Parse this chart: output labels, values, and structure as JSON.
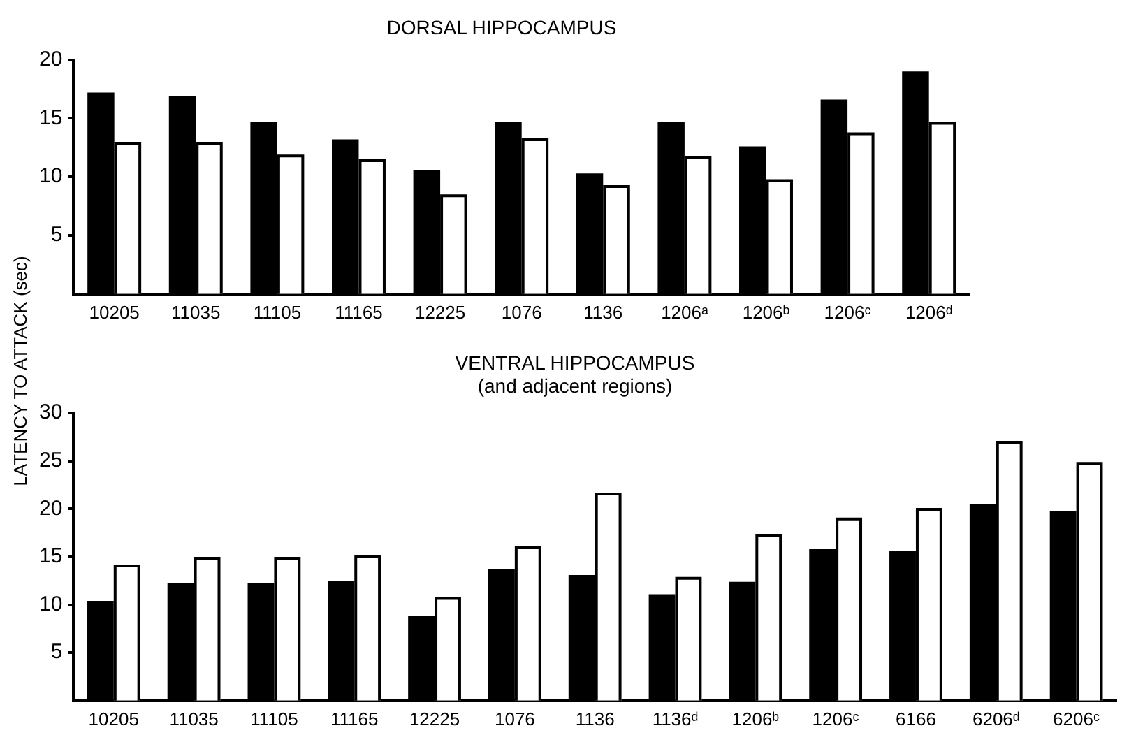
{
  "chart_data": [
    {
      "type": "bar",
      "title": "DORSAL HIPPOCAMPUS",
      "ylabel": "LATENCY TO ATTACK (sec)",
      "categories": [
        "10205",
        "11035",
        "11105",
        "11165",
        "12225",
        "1076",
        "1136",
        "1206ᵃ",
        "1206ᵇ",
        "1206ᶜ",
        "1206ᵈ"
      ],
      "series": [
        {
          "color": "#000000",
          "values": [
            17.2,
            16.9,
            14.7,
            13.2,
            10.6,
            14.7,
            10.3,
            14.7,
            12.6,
            16.6,
            19.0
          ]
        },
        {
          "color": "#ffffff",
          "values": [
            13.0,
            13.0,
            11.9,
            11.5,
            8.5,
            13.3,
            9.3,
            11.8,
            9.8,
            13.8,
            14.7
          ]
        }
      ],
      "ylim": [
        0,
        20
      ],
      "yticks": [
        5,
        10,
        15,
        20
      ],
      "grid": false,
      "legend": false
    },
    {
      "type": "bar",
      "title": "VENTRAL HIPPOCAMPUS",
      "subtitle": "(and adjacent regions)",
      "categories": [
        "10205",
        "11035",
        "11105",
        "11165",
        "12225",
        "1076",
        "1136",
        "1136ᵈ",
        "1206ᵇ",
        "1206ᶜ",
        "6166",
        "6206ᵈ",
        "6206ᶜ"
      ],
      "series": [
        {
          "color": "#000000",
          "values": [
            10.4,
            12.3,
            12.3,
            12.5,
            8.8,
            13.7,
            13.1,
            11.1,
            12.4,
            15.8,
            15.6,
            20.5,
            19.8
          ]
        },
        {
          "color": "#ffffff",
          "values": [
            14.2,
            15.0,
            15.0,
            15.2,
            10.8,
            16.1,
            21.7,
            12.9,
            17.4,
            19.1,
            20.1,
            27.1,
            24.9
          ]
        }
      ],
      "ylim": [
        0,
        30
      ],
      "yticks": [
        5,
        10,
        15,
        20,
        25,
        30
      ],
      "grid": false,
      "legend": false
    }
  ]
}
